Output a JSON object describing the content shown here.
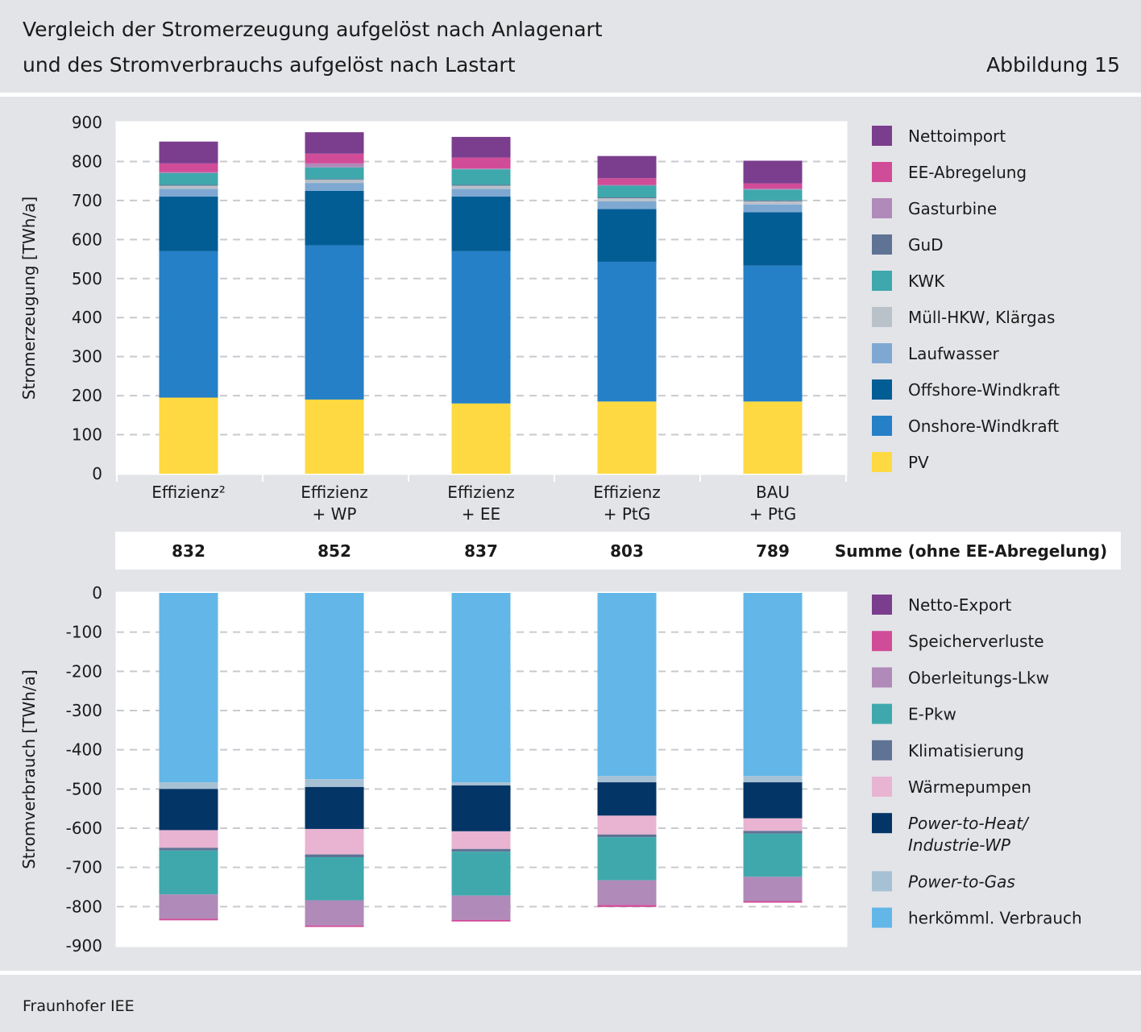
{
  "header": {
    "title_line1": "Vergleich der Stromerzeugung aufgelöst nach Anlagenart",
    "title_line2": "und des Stromverbrauchs aufgelöst nach Lastart",
    "figure_label": "Abbildung 15"
  },
  "footer": {
    "source": "Fraunhofer IEE"
  },
  "sum_row": {
    "label": "Summe (ohne EE-Abregelung)",
    "values": [
      "832",
      "852",
      "837",
      "803",
      "789"
    ]
  },
  "colors": {
    "Nettoimport": "#7b3e8e",
    "EE-Abregelung": "#d14c98",
    "Gasturbine": "#b08ab9",
    "GuD": "#5f7394",
    "KWK": "#3fa8ad",
    "Müll-HKW, Klärgas": "#b9c1c9",
    "Laufwasser": "#7ea8d2",
    "Offshore-Windkraft": "#035d95",
    "Onshore-Windkraft": "#2580c7",
    "PV": "#fed941",
    "Netto-Export": "#7b3e8e",
    "Speicherverluste": "#d14c98",
    "Oberleitungs-Lkw": "#b08ab9",
    "E-Pkw": "#3fa8ad",
    "Klimatisierung": "#5f7394",
    "Wärmepumpen": "#e8b4d2",
    "Power-to-Heat/Industrie-WP": "#033566",
    "Power-to-Gas": "#a7c1d4",
    "herkömml. Verbrauch": "#62b7e8"
  },
  "chart_data": [
    {
      "type": "bar",
      "stacked": true,
      "title": "Stromerzeugung",
      "ylabel": "Stromerzeugung  [TWh/a]",
      "xlabel": "",
      "ylim": [
        0,
        900
      ],
      "yticks": [
        0,
        100,
        200,
        300,
        400,
        500,
        600,
        700,
        800,
        900
      ],
      "grid": "dashed horizontal",
      "categories": [
        [
          "Effizienz²"
        ],
        [
          "Effizienz",
          "+ WP"
        ],
        [
          "Effizienz",
          "+ EE"
        ],
        [
          "Effizienz",
          "+ PtG"
        ],
        [
          "BAU",
          "+ PtG"
        ]
      ],
      "series": [
        {
          "name": "PV",
          "values": [
            195,
            190,
            180,
            185,
            185
          ]
        },
        {
          "name": "Onshore-Windkraft",
          "values": [
            375,
            395,
            390,
            358,
            348
          ]
        },
        {
          "name": "Offshore-Windkraft",
          "values": [
            140,
            140,
            140,
            135,
            137
          ]
        },
        {
          "name": "Laufwasser",
          "values": [
            20,
            20,
            20,
            20,
            20
          ]
        },
        {
          "name": "Müll-HKW, Klärgas",
          "values": [
            8,
            8,
            8,
            8,
            8
          ]
        },
        {
          "name": "GuD",
          "values": [
            2,
            2,
            2,
            2,
            2
          ]
        },
        {
          "name": "KWK",
          "values": [
            30,
            30,
            40,
            30,
            28
          ]
        },
        {
          "name": "Gasturbine",
          "values": [
            3,
            10,
            2,
            2,
            2
          ]
        },
        {
          "name": "EE-Abregelung",
          "values": [
            22,
            25,
            28,
            17,
            14
          ]
        },
        {
          "name": "Nettoimport",
          "values": [
            56,
            55,
            53,
            57,
            58
          ]
        }
      ],
      "legend": [
        "Nettoimport",
        "EE-Abregelung",
        "Gasturbine",
        "GuD",
        "KWK",
        "Müll-HKW, Klärgas",
        "Laufwasser",
        "Offshore-Windkraft",
        "Onshore-Windkraft",
        "PV"
      ],
      "legend_position": "right"
    },
    {
      "type": "bar",
      "stacked": true,
      "title": "Stromverbrauch",
      "ylabel": "Stromverbrauch [TWh/a]",
      "xlabel": "",
      "ylim": [
        -900,
        0
      ],
      "yticks": [
        0,
        -100,
        -200,
        -300,
        -400,
        -500,
        -600,
        -700,
        -800,
        -900
      ],
      "grid": "dashed horizontal",
      "categories": [
        [
          "Effizienz²"
        ],
        [
          "Effizienz",
          "+ WP"
        ],
        [
          "Effizienz",
          "+ EE"
        ],
        [
          "Effizienz",
          "+ PtG"
        ],
        [
          "BAU",
          "+ PtG"
        ]
      ],
      "series": [
        {
          "name": "herkömml. Verbrauch",
          "values": [
            -483,
            -475,
            -483,
            -467,
            -467
          ]
        },
        {
          "name": "Power-to-Gas",
          "values": [
            -17,
            -20,
            -8,
            -16,
            -16
          ]
        },
        {
          "name": "Power-to-Heat/Industrie-WP",
          "values": [
            -105,
            -107,
            -117,
            -85,
            -92
          ]
        },
        {
          "name": "Wärmepumpen",
          "values": [
            -45,
            -65,
            -45,
            -48,
            -32
          ]
        },
        {
          "name": "Klimatisierung",
          "values": [
            -7,
            -7,
            -7,
            -7,
            -7
          ]
        },
        {
          "name": "E-Pkw",
          "values": [
            -112,
            -110,
            -112,
            -110,
            -110
          ]
        },
        {
          "name": "Oberleitungs-Lkw",
          "values": [
            -62,
            -64,
            -62,
            -63,
            -62
          ]
        },
        {
          "name": "Speicherverluste",
          "values": [
            -4,
            -4,
            -4,
            -5,
            -4
          ]
        },
        {
          "name": "Netto-Export",
          "values": [
            0,
            0,
            0,
            0,
            0
          ]
        }
      ],
      "legend": [
        "Netto-Export",
        "Speicherverluste",
        "Oberleitungs-Lkw",
        "E-Pkw",
        "Klimatisierung",
        "Wärmepumpen",
        "Power-to-Heat/Industrie-WP",
        "Power-to-Gas",
        "herkömml. Verbrauch"
      ],
      "legend_labels": {
        "Power-to-Heat/Industrie-WP": [
          "Power-to-Heat/",
          "Industrie-WP"
        ]
      },
      "legend_italic": [
        "Power-to-Heat/Industrie-WP",
        "Power-to-Gas"
      ],
      "legend_position": "right"
    }
  ]
}
